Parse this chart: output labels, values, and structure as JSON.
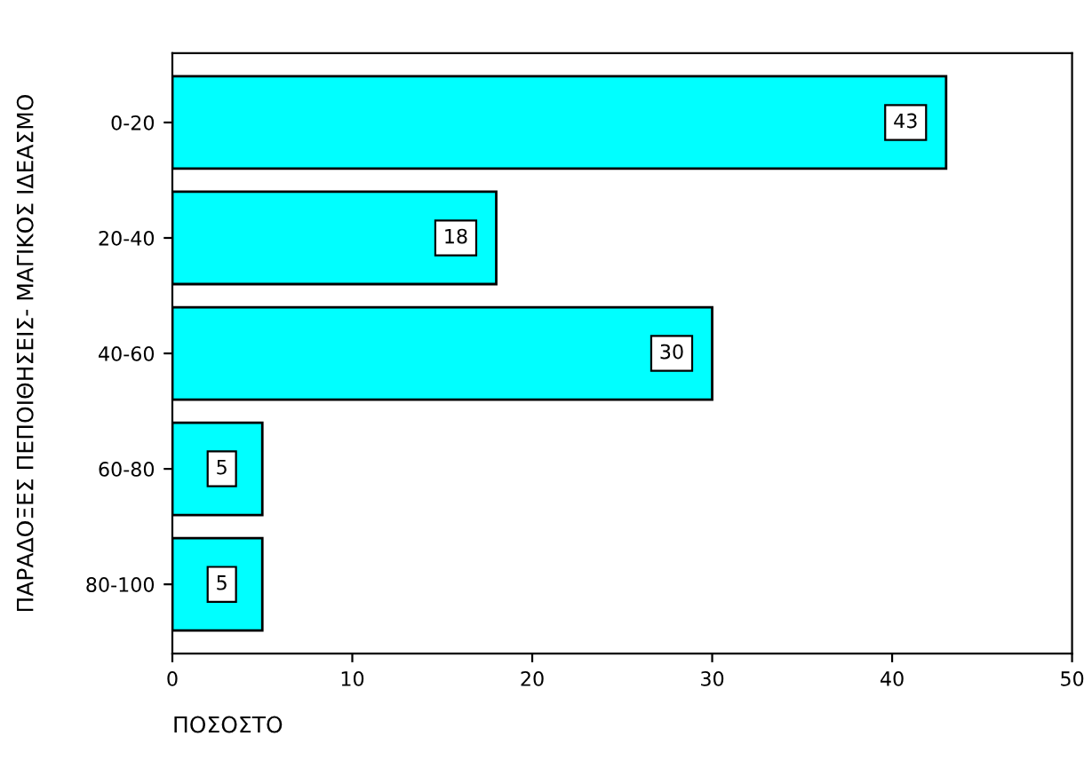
{
  "chart_data": {
    "type": "bar",
    "orientation": "horizontal",
    "categories": [
      "0-20",
      "20-40",
      "40-60",
      "60-80",
      "80-100"
    ],
    "values": [
      43,
      18,
      30,
      5,
      5
    ],
    "color": "#00ffff",
    "xlim": [
      0,
      50
    ],
    "xticks": [
      0,
      10,
      20,
      30,
      40,
      50
    ],
    "xlabel": "ΠΟΣΟΣΤΟ",
    "ylabel": "ΠΑΡΑΔΟΞΕΣ ΠΕΠΟΙΘΗΣΕΙΣ- ΜΑΓΙΚΟΣ ΙΔΕΑΣΜΟ",
    "data_labels": true,
    "grid": false
  }
}
